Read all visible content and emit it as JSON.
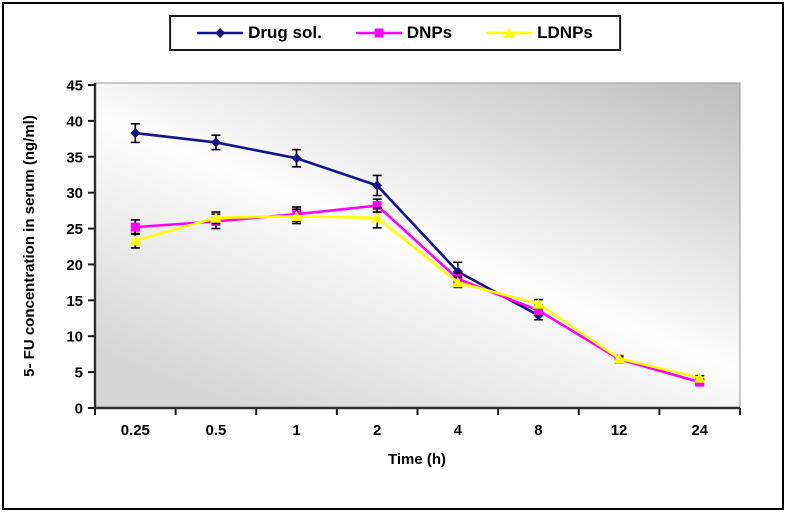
{
  "figure": {
    "border_color": "#000000",
    "plot_background": {
      "gradient_dark": "#bdbdbd",
      "gradient_light": "#fdfdfd",
      "gradient_mid": "#d6d6d6",
      "plot_border": "#9a9a9a"
    }
  },
  "chart_data": {
    "type": "line",
    "title": "",
    "xlabel": "Time (h)",
    "ylabel": "5- FU concentration in serum (ng/ml)",
    "categories": [
      "0.25",
      "0.5",
      "1",
      "2",
      "4",
      "8",
      "12",
      "24"
    ],
    "series": [
      {
        "name": "Drug sol.",
        "color": "#14148c",
        "marker": "diamond",
        "values": [
          38.3,
          37.0,
          34.8,
          31.0,
          19.0,
          12.9,
          null,
          null
        ],
        "errors": [
          1.3,
          1.0,
          1.2,
          1.4,
          1.3,
          0.6,
          null,
          null
        ]
      },
      {
        "name": "DNPs",
        "color": "#ff00ff",
        "marker": "square",
        "values": [
          25.2,
          26.0,
          27.0,
          28.2,
          18.0,
          13.6,
          6.8,
          3.6
        ],
        "errors": [
          1.0,
          1.0,
          1.0,
          0.9,
          0.8,
          0.7,
          0.3,
          0.3
        ]
      },
      {
        "name": "LDNPs",
        "color": "#ffff00",
        "marker": "triangle",
        "values": [
          23.3,
          26.5,
          26.7,
          26.5,
          17.5,
          14.5,
          6.9,
          4.2
        ],
        "errors": [
          1.0,
          0.8,
          1.0,
          1.4,
          0.7,
          0.6,
          0.3,
          0.3
        ]
      }
    ],
    "ylim": [
      0,
      45
    ],
    "ytick_step": 5,
    "error_bar_color": "#000000",
    "legend_position": "top",
    "grid": false
  }
}
